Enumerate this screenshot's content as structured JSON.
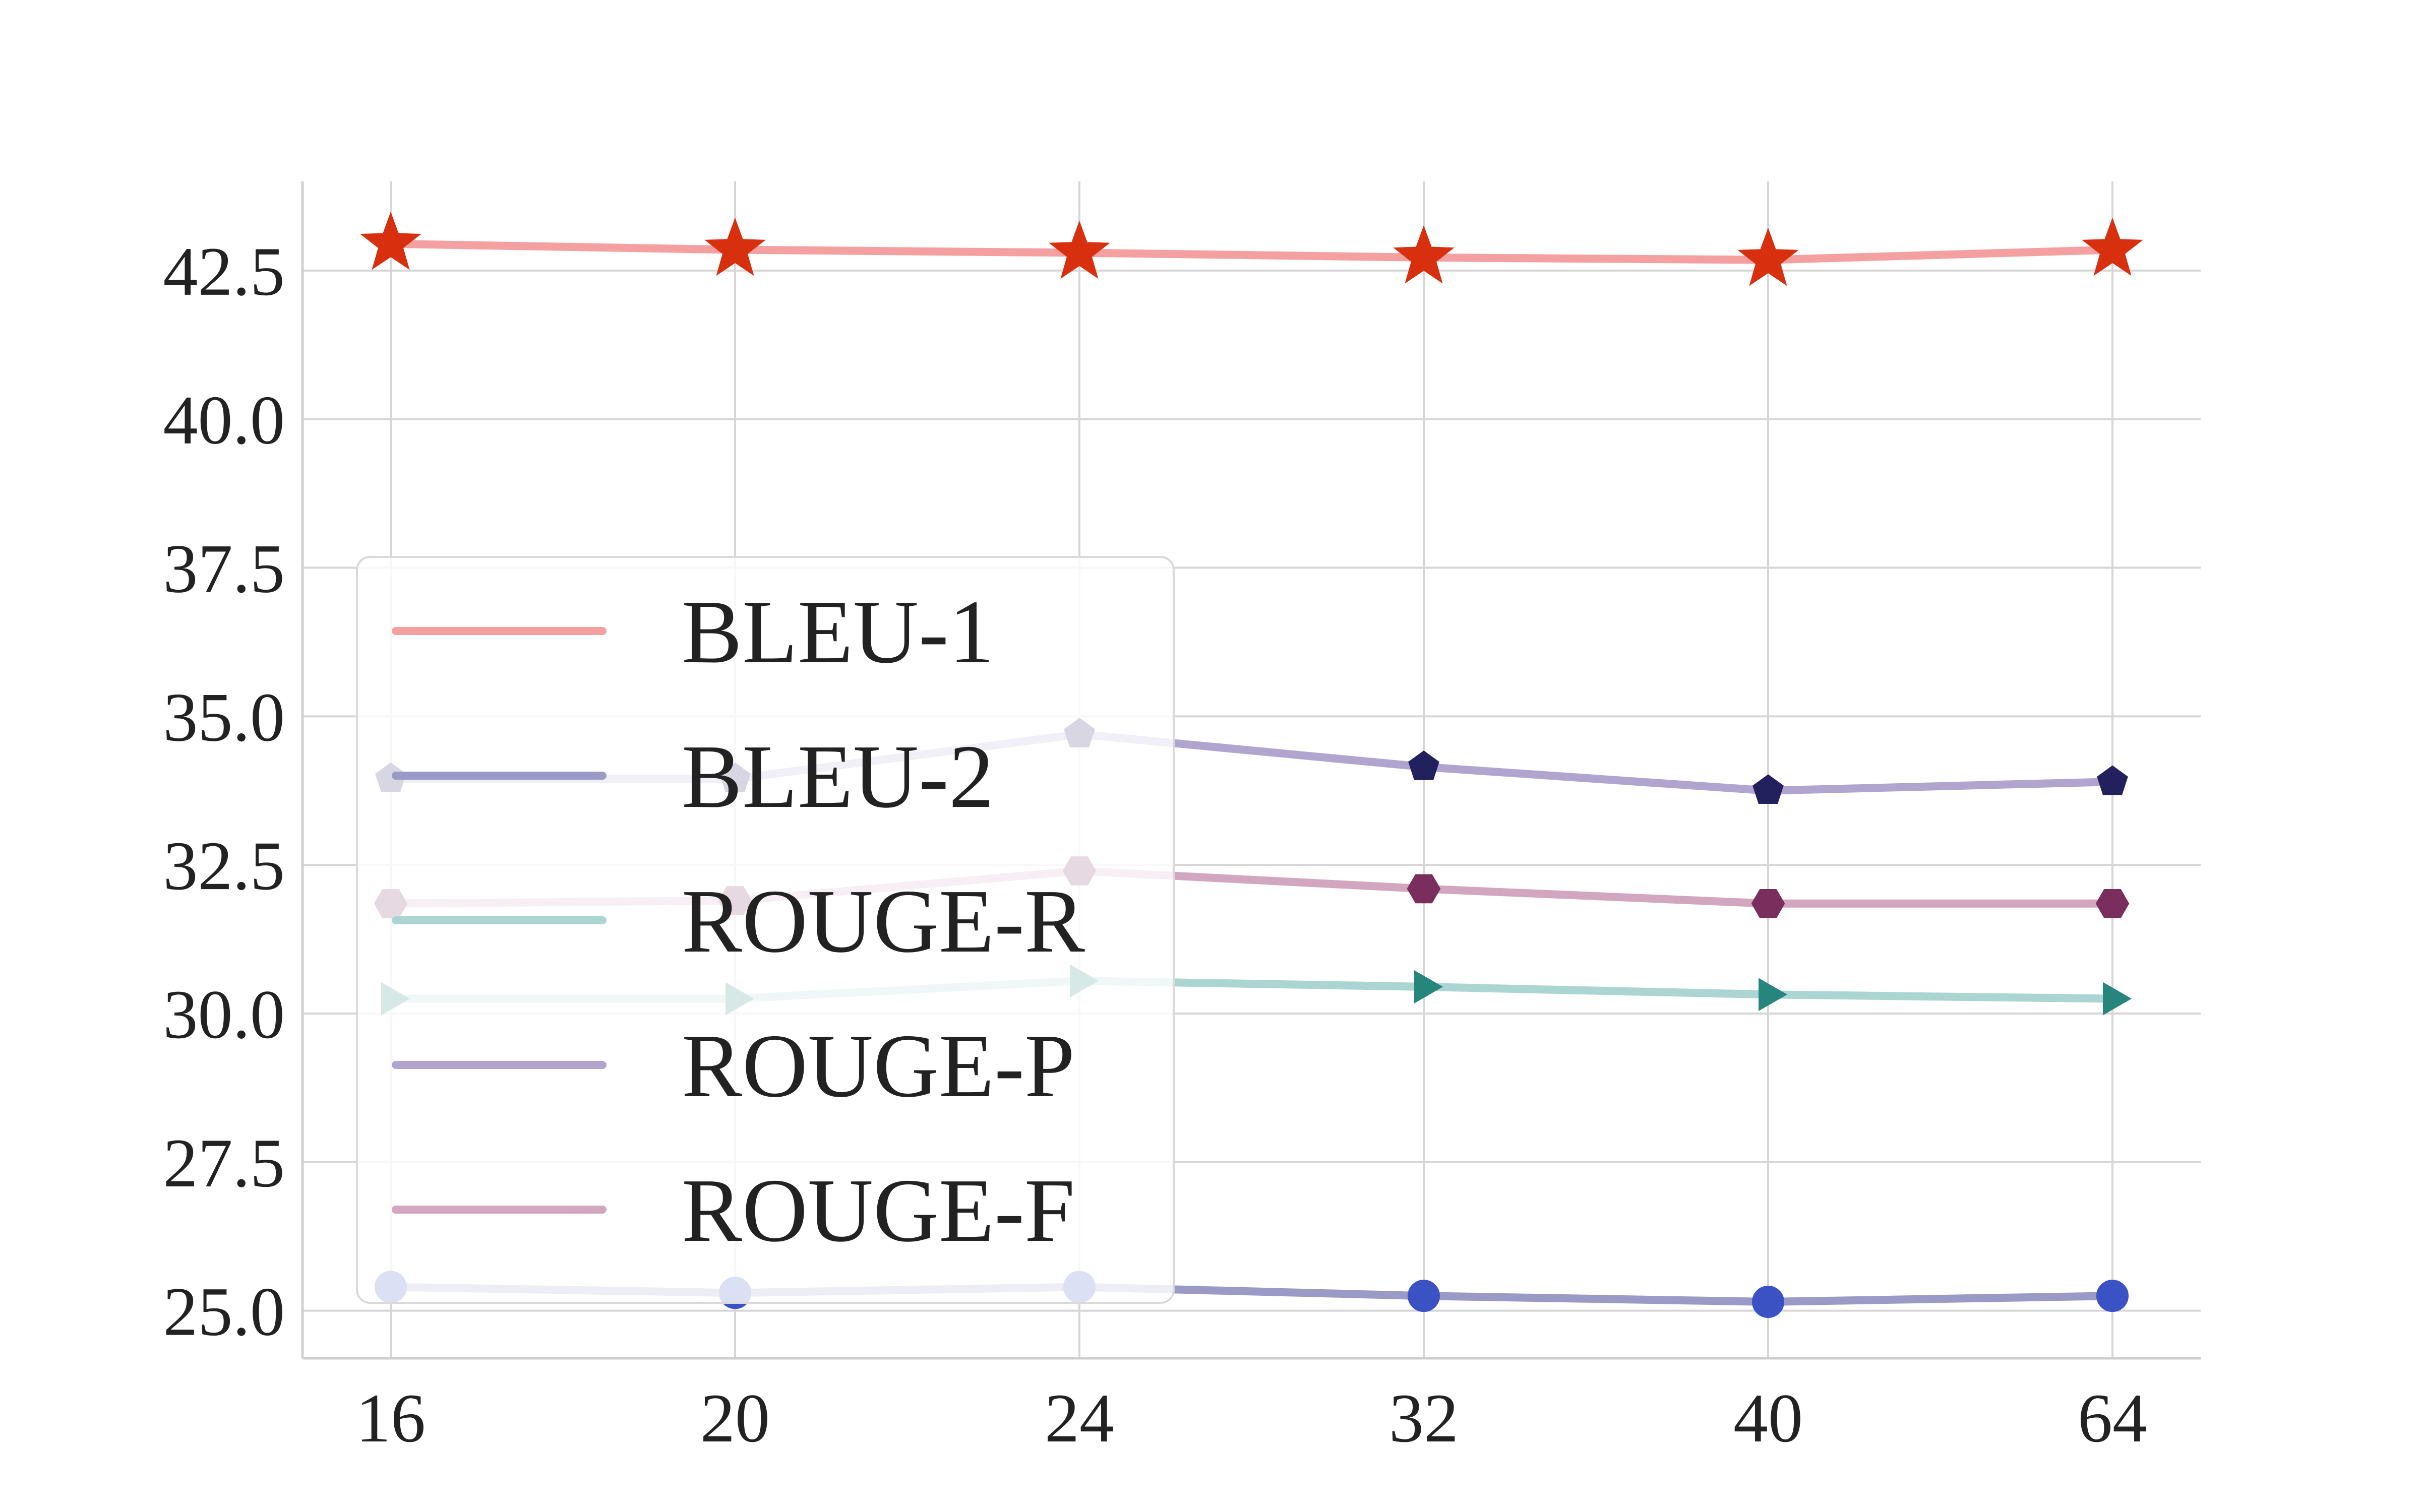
{
  "chart_data": {
    "type": "line",
    "title": "",
    "xlabel": "",
    "ylabel": "",
    "categories": [
      "16",
      "20",
      "24",
      "32",
      "40",
      "64"
    ],
    "ylim": [
      24.2,
      44.0
    ],
    "yticks": [
      "25.0",
      "27.5",
      "30.0",
      "32.5",
      "35.0",
      "37.5",
      "40.0",
      "42.5"
    ],
    "grid": true,
    "legend_position": "center-left",
    "series": [
      {
        "name": "BLEU-1",
        "values": [
          42.95,
          42.85,
          42.8,
          42.72,
          42.68,
          42.85
        ],
        "line_color": "#f4a0a0",
        "marker": "star",
        "marker_color": "#d8300f"
      },
      {
        "name": "BLEU-2",
        "values": [
          25.4,
          25.3,
          25.4,
          25.25,
          25.15,
          25.25
        ],
        "line_color": "#9b9ac6",
        "marker": "circle",
        "marker_color": "#3a52c4"
      },
      {
        "name": "ROUGE-R",
        "values": [
          30.25,
          30.25,
          30.55,
          30.45,
          30.32,
          30.25
        ],
        "line_color": "#aad5d1",
        "marker": "triangle-right",
        "marker_color": "#26857d"
      },
      {
        "name": "ROUGE-P",
        "values": [
          33.95,
          33.95,
          34.7,
          34.15,
          33.75,
          33.9
        ],
        "line_color": "#b0a5cf",
        "marker": "pentagon",
        "marker_color": "#23205e"
      },
      {
        "name": "ROUGE-F",
        "values": [
          31.85,
          31.9,
          32.4,
          32.1,
          31.85,
          31.85
        ],
        "line_color": "#d2a6be",
        "marker": "hexagon",
        "marker_color": "#7a2e5e"
      }
    ]
  }
}
